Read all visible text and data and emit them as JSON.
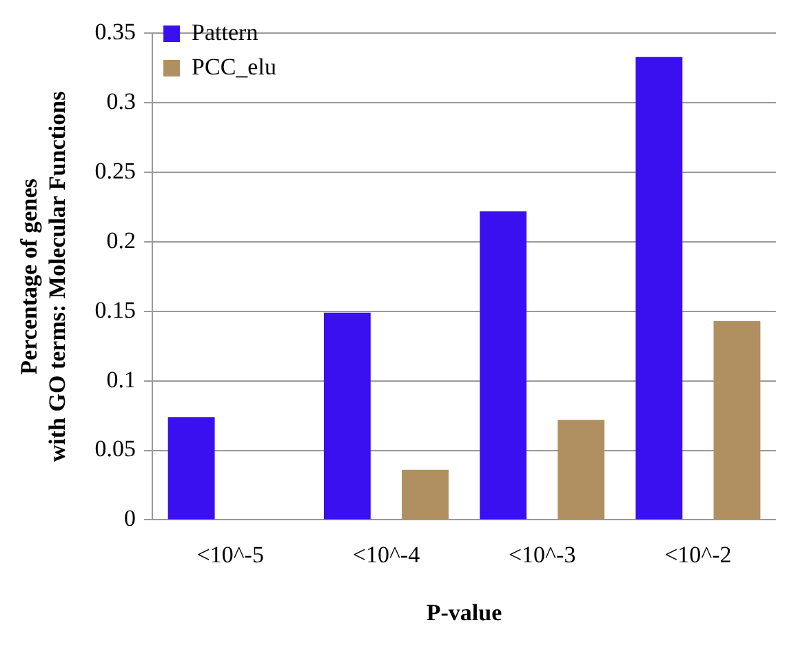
{
  "chart_data": {
    "type": "bar",
    "xlabel": "P-value",
    "ylabel": "Percentage of genes\nwith GO terms: Molecular Functions",
    "categories": [
      "<10^-5",
      "<10^-4",
      "<10^-3",
      "<10^-2"
    ],
    "series": [
      {
        "name": "Pattern",
        "color": "#3a10f0",
        "values": [
          0.074,
          0.149,
          0.222,
          0.333
        ]
      },
      {
        "name": "PCC_elu",
        "color": "#b09060",
        "values": [
          0,
          0.036,
          0.072,
          0.143
        ]
      }
    ],
    "ylim": [
      0,
      0.35
    ],
    "yticks": [
      0,
      0.05,
      0.1,
      0.15,
      0.2,
      0.25,
      0.3,
      0.35
    ],
    "grid": "y",
    "legend": "top left"
  }
}
